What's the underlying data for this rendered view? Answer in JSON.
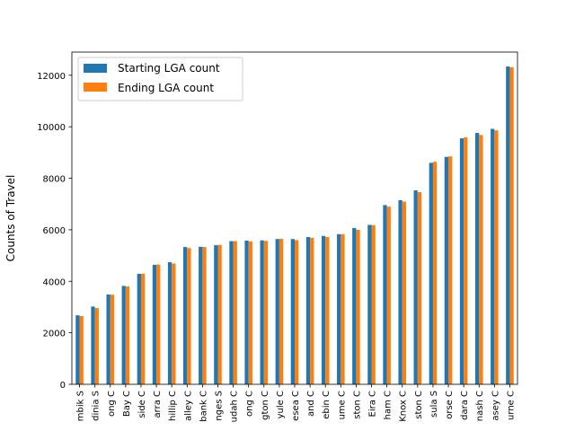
{
  "chart_data": {
    "type": "bar",
    "title": "",
    "xlabel": "",
    "ylabel": "Counts of Travel",
    "ylim": [
      0,
      12900
    ],
    "yticks": [
      0,
      2000,
      4000,
      6000,
      8000,
      10000,
      12000
    ],
    "legend_position": "top-left",
    "grid": false,
    "categories": [
      "mbik S",
      "dinia S",
      "ong C",
      "Bay C",
      "side C",
      "arra C",
      "hillip C",
      "alley C",
      "bank C",
      "nges S",
      "udah C",
      "ong C",
      "gton C",
      "yule C",
      "esea C",
      "and C",
      "ebin C",
      "ume C",
      "ston C",
      "Eira C",
      "ham C",
      "Knox C",
      "ston C",
      "sula S",
      "orse C",
      "dara C",
      "nash C",
      "asey C",
      "urne C"
    ],
    "series": [
      {
        "name": "Starting LGA count",
        "color": "#1f77b4",
        "values": [
          2680,
          3020,
          3490,
          3820,
          4290,
          4640,
          4740,
          5330,
          5340,
          5400,
          5560,
          5580,
          5590,
          5640,
          5640,
          5720,
          5760,
          5830,
          6070,
          6190,
          6960,
          7150,
          7530,
          8600,
          8830,
          9550,
          9760,
          9920,
          12340
        ]
      },
      {
        "name": "Ending LGA count",
        "color": "#ff7f0e",
        "values": [
          2650,
          2960,
          3480,
          3800,
          4290,
          4650,
          4690,
          5290,
          5330,
          5410,
          5560,
          5550,
          5570,
          5650,
          5600,
          5690,
          5720,
          5830,
          6000,
          6180,
          6900,
          7090,
          7460,
          8640,
          8850,
          9590,
          9680,
          9860,
          12310
        ]
      }
    ]
  }
}
